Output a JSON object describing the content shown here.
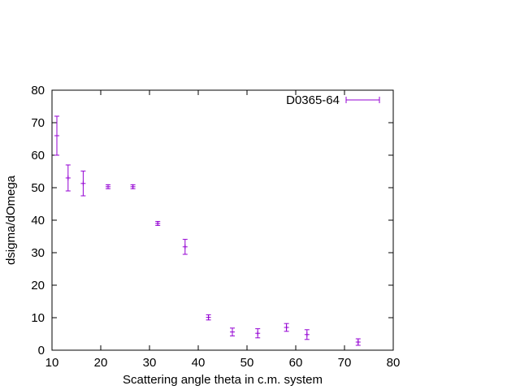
{
  "chart_data": {
    "type": "scatter",
    "xlabel": "Scattering angle theta in c.m. system",
    "ylabel": "dsigma/dOmega",
    "xlim": [
      10,
      80
    ],
    "ylim": [
      0,
      80
    ],
    "xticks": [
      10,
      20,
      30,
      40,
      50,
      60,
      70,
      80
    ],
    "yticks": [
      0,
      10,
      20,
      30,
      40,
      50,
      60,
      70,
      80
    ],
    "grid": false,
    "legend_position": "top-right",
    "series": [
      {
        "name": "D0365-64",
        "color": "#9400d3",
        "points": [
          {
            "x": 11.0,
            "y": 66.0,
            "err": 6.0
          },
          {
            "x": 13.3,
            "y": 53.0,
            "err": 4.0
          },
          {
            "x": 16.4,
            "y": 51.3,
            "err": 3.8
          },
          {
            "x": 21.5,
            "y": 50.3,
            "err": 0.6
          },
          {
            "x": 26.6,
            "y": 50.3,
            "err": 0.6
          },
          {
            "x": 31.7,
            "y": 39.0,
            "err": 0.6
          },
          {
            "x": 37.3,
            "y": 31.8,
            "err": 2.3
          },
          {
            "x": 42.1,
            "y": 10.1,
            "err": 0.8
          },
          {
            "x": 47.0,
            "y": 5.6,
            "err": 1.2
          },
          {
            "x": 52.2,
            "y": 5.2,
            "err": 1.4
          },
          {
            "x": 58.1,
            "y": 7.0,
            "err": 1.2
          },
          {
            "x": 62.3,
            "y": 4.8,
            "err": 1.5
          },
          {
            "x": 72.8,
            "y": 2.5,
            "err": 1.0
          }
        ]
      }
    ]
  }
}
